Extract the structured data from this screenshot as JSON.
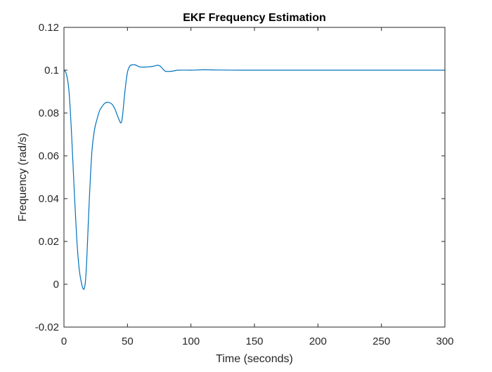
{
  "chart_data": {
    "type": "line",
    "title": "EKF Frequency Estimation",
    "xlabel": "Time (seconds)",
    "ylabel": "Frequency (rad/s)",
    "xlim": [
      0,
      300
    ],
    "ylim": [
      -0.02,
      0.12
    ],
    "xticks": [
      0,
      50,
      100,
      150,
      200,
      250,
      300
    ],
    "yticks": [
      -0.02,
      0,
      0.02,
      0.04,
      0.06,
      0.08,
      0.1,
      0.12
    ],
    "xtick_labels": [
      "0",
      "50",
      "100",
      "150",
      "200",
      "250",
      "300"
    ],
    "ytick_labels": [
      "-0.02",
      "0",
      "0.02",
      "0.04",
      "0.06",
      "0.08",
      "0.1",
      "0.12"
    ],
    "grid": false,
    "series": [
      {
        "color": "#0072BD",
        "x": [
          0,
          2,
          4,
          6,
          8,
          10,
          12,
          14,
          15,
          16,
          17,
          18,
          20,
          22,
          24,
          26,
          28,
          30,
          32,
          34,
          36,
          38,
          40,
          42,
          44,
          45,
          46,
          48,
          50,
          52,
          54,
          56,
          60,
          65,
          70,
          74,
          76,
          78,
          80,
          85,
          90,
          100,
          110,
          120,
          140,
          160,
          200,
          250,
          300
        ],
        "y": [
          0.1,
          0.098,
          0.09,
          0.07,
          0.045,
          0.022,
          0.007,
          0.0,
          -0.002,
          -0.002,
          0.002,
          0.012,
          0.04,
          0.062,
          0.072,
          0.077,
          0.081,
          0.083,
          0.0845,
          0.085,
          0.0848,
          0.084,
          0.082,
          0.079,
          0.076,
          0.0755,
          0.078,
          0.09,
          0.099,
          0.102,
          0.1025,
          0.1025,
          0.1015,
          0.1015,
          0.1018,
          0.1023,
          0.1018,
          0.1005,
          0.0995,
          0.0995,
          0.1,
          0.1,
          0.1002,
          0.1001,
          0.1,
          0.1,
          0.1,
          0.1,
          0.1
        ]
      }
    ]
  }
}
